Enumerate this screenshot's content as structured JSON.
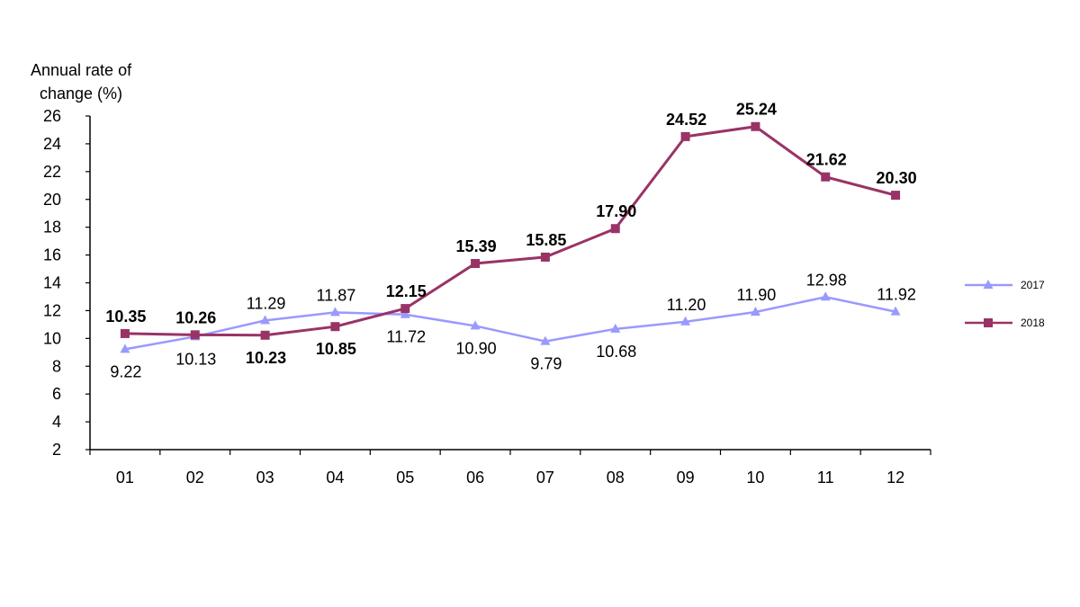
{
  "chart_data": {
    "type": "line",
    "title": "",
    "ylabel_lines": [
      "Annual rate of",
      "change (%)"
    ],
    "xlabel": "",
    "categories": [
      "01",
      "02",
      "03",
      "04",
      "05",
      "06",
      "07",
      "08",
      "09",
      "10",
      "11",
      "12"
    ],
    "yticks": [
      "2",
      "4",
      "6",
      "8",
      "10",
      "12",
      "14",
      "16",
      "18",
      "20",
      "22",
      "24",
      "26"
    ],
    "ylim": [
      2,
      26
    ],
    "grid": false,
    "legend_position": "right",
    "series": [
      {
        "name": "2017",
        "color": "#9999ff",
        "marker": "triangle",
        "values": [
          9.22,
          10.13,
          11.29,
          11.87,
          11.72,
          10.9,
          9.79,
          10.68,
          11.2,
          11.9,
          12.98,
          11.92
        ],
        "labels": [
          "9.22",
          "10.13",
          "11.29",
          "11.87",
          "11.72",
          "10.90",
          "9.79",
          "10.68",
          "11.20",
          "11.90",
          "12.98",
          "11.92"
        ],
        "label_bold": false
      },
      {
        "name": "2018",
        "color": "#993366",
        "marker": "square",
        "values": [
          10.35,
          10.26,
          10.23,
          10.85,
          12.15,
          15.39,
          15.85,
          17.9,
          24.52,
          25.24,
          21.62,
          20.3
        ],
        "labels": [
          "10.35",
          "10.26",
          "10.23",
          "10.85",
          "12.15",
          "15.39",
          "15.85",
          "17.90",
          "24.52",
          "25.24",
          "21.62",
          "20.30"
        ],
        "label_bold": true
      }
    ]
  }
}
